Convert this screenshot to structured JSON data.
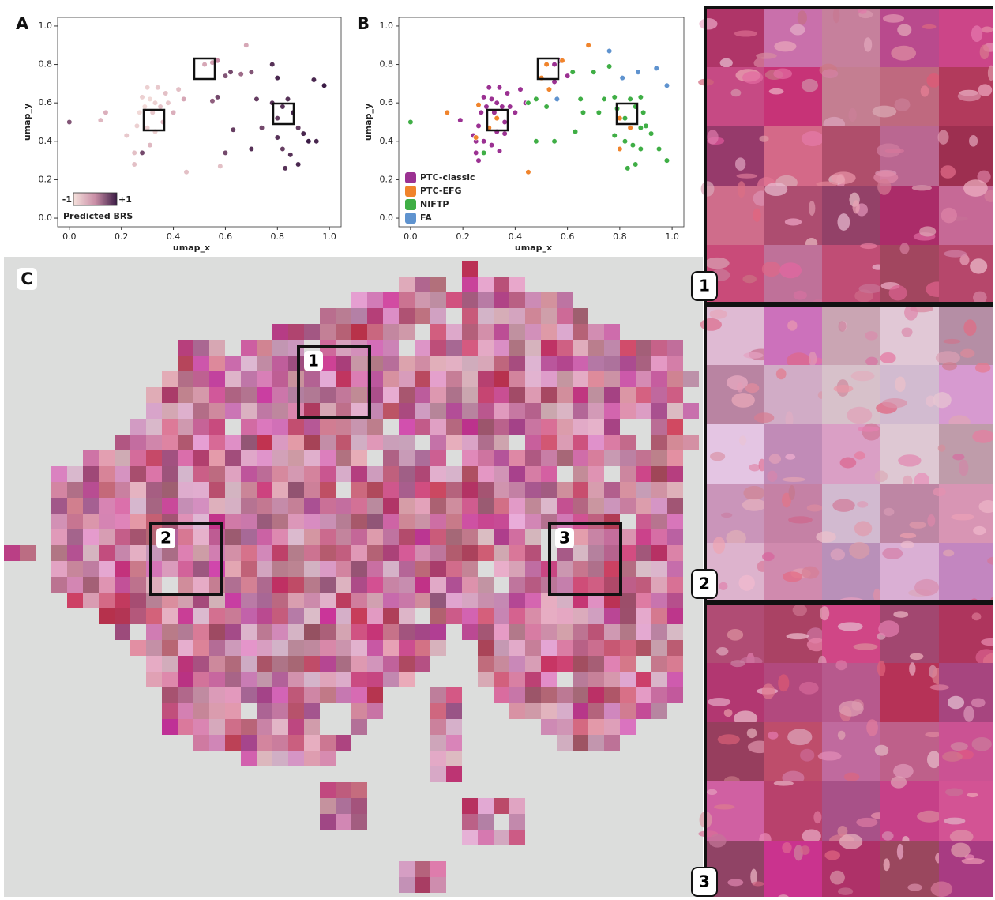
{
  "panels": {
    "a": "A",
    "b": "B",
    "c": "C"
  },
  "chart_data": [
    {
      "type": "scatter",
      "xlabel": "umap_x",
      "ylabel": "umap_y",
      "xlim": [
        -0.045,
        1.045
      ],
      "ylim": [
        -0.045,
        1.045
      ],
      "xticks": [
        {
          "value": 0,
          "label": "0.0"
        },
        {
          "value": 0.2,
          "label": "0.2"
        },
        {
          "value": 0.4,
          "label": "0.4"
        },
        {
          "value": 0.6,
          "label": "0.6"
        },
        {
          "value": 0.8,
          "label": "0.8"
        },
        {
          "value": 1,
          "label": "1.0"
        }
      ],
      "yticks": [
        {
          "value": 0,
          "label": "0.0"
        },
        {
          "value": 0.2,
          "label": "0.2"
        },
        {
          "value": 0.4,
          "label": "0.4"
        },
        {
          "value": 0.6,
          "label": "0.6"
        },
        {
          "value": 0.8,
          "label": "0.8"
        },
        {
          "value": 1,
          "label": "1.0"
        }
      ],
      "x": [
        0.0,
        0.12,
        0.14,
        0.22,
        0.25,
        0.25,
        0.26,
        0.27,
        0.28,
        0.29,
        0.3,
        0.31,
        0.32,
        0.33,
        0.34,
        0.35,
        0.36,
        0.37,
        0.38,
        0.3,
        0.33,
        0.28,
        0.31,
        0.4,
        0.42,
        0.45,
        0.44,
        0.52,
        0.55,
        0.57,
        0.6,
        0.62,
        0.55,
        0.57,
        0.58,
        0.66,
        0.68,
        0.7,
        0.72,
        0.7,
        0.74,
        0.78,
        0.8,
        0.78,
        0.8,
        0.82,
        0.84,
        0.86,
        0.88,
        0.9,
        0.92,
        0.95,
        0.8,
        0.82,
        0.85,
        0.88,
        0.83,
        0.94,
        0.98,
        0.6,
        0.63
      ],
      "y": [
        0.5,
        0.51,
        0.55,
        0.43,
        0.34,
        0.28,
        0.48,
        0.55,
        0.63,
        0.58,
        0.68,
        0.62,
        0.55,
        0.6,
        0.68,
        0.58,
        0.5,
        0.65,
        0.6,
        0.47,
        0.45,
        0.34,
        0.38,
        0.55,
        0.67,
        0.24,
        0.62,
        0.8,
        0.81,
        0.82,
        0.74,
        0.76,
        0.61,
        0.63,
        0.27,
        0.75,
        0.9,
        0.76,
        0.62,
        0.36,
        0.47,
        0.8,
        0.73,
        0.6,
        0.52,
        0.58,
        0.62,
        0.55,
        0.47,
        0.44,
        0.4,
        0.4,
        0.42,
        0.36,
        0.33,
        0.28,
        0.26,
        0.72,
        0.69,
        0.34,
        0.46
      ],
      "color_values": [
        0.5,
        -0.5,
        -0.4,
        -0.7,
        -0.6,
        -0.6,
        -0.8,
        -0.9,
        -0.8,
        -0.9,
        -0.8,
        -0.9,
        -0.7,
        -0.8,
        -0.7,
        -0.6,
        -0.5,
        -0.6,
        -0.7,
        -0.8,
        -0.8,
        0.6,
        -0.5,
        -0.4,
        -0.6,
        -0.6,
        -0.3,
        -0.3,
        -0.2,
        0.0,
        0.5,
        0.6,
        0.4,
        0.6,
        -0.6,
        0.3,
        -0.3,
        0.5,
        0.7,
        0.8,
        0.6,
        0.8,
        0.9,
        0.8,
        0.7,
        0.8,
        0.8,
        0.9,
        0.7,
        0.9,
        1.0,
        0.9,
        0.8,
        0.7,
        0.8,
        0.9,
        0.8,
        0.9,
        1.0,
        0.6,
        0.7
      ],
      "colorbar_label": "Predicted BRS",
      "clim": [
        -1,
        1
      ],
      "cticks": [
        -1,
        {
          "value": 1,
          "label": "+1"
        }
      ],
      "cmap": [
        "#f5e1dc",
        "#c98ea6",
        "#3b1b45"
      ]
    },
    {
      "type": "scatter",
      "xlabel": "umap_x",
      "ylabel": "umap_y",
      "xlim": [
        -0.045,
        1.045
      ],
      "ylim": [
        -0.045,
        1.045
      ],
      "xticks": [
        {
          "value": 0,
          "label": "0.0"
        },
        {
          "value": 0.2,
          "label": "0.2"
        },
        {
          "value": 0.4,
          "label": "0.4"
        },
        {
          "value": 0.6,
          "label": "0.6"
        },
        {
          "value": 0.8,
          "label": "0.8"
        },
        {
          "value": 1,
          "label": "1.0"
        }
      ],
      "yticks": [
        {
          "value": 0,
          "label": "0.0"
        },
        {
          "value": 0.2,
          "label": "0.2"
        },
        {
          "value": 0.4,
          "label": "0.4"
        },
        {
          "value": 0.6,
          "label": "0.6"
        },
        {
          "value": 0.8,
          "label": "0.8"
        },
        {
          "value": 1,
          "label": "1.0"
        }
      ],
      "series": [
        {
          "name": "PTC-classic",
          "color": "#9b3192",
          "x": [
            0.19,
            0.24,
            0.25,
            0.25,
            0.26,
            0.27,
            0.28,
            0.29,
            0.3,
            0.31,
            0.32,
            0.33,
            0.34,
            0.35,
            0.36,
            0.37,
            0.38,
            0.3,
            0.33,
            0.28,
            0.31,
            0.4,
            0.42,
            0.44,
            0.26,
            0.34,
            0.55,
            0.57,
            0.55,
            0.6,
            0.36
          ],
          "y": [
            0.51,
            0.43,
            0.4,
            0.34,
            0.48,
            0.55,
            0.63,
            0.58,
            0.68,
            0.62,
            0.55,
            0.6,
            0.68,
            0.58,
            0.5,
            0.65,
            0.58,
            0.47,
            0.45,
            0.4,
            0.38,
            0.55,
            0.67,
            0.6,
            0.3,
            0.35,
            0.8,
            0.82,
            0.71,
            0.74,
            0.44
          ]
        },
        {
          "name": "PTC-EFG",
          "color": "#f0842c",
          "x": [
            0.14,
            0.26,
            0.25,
            0.33,
            0.45,
            0.52,
            0.5,
            0.58,
            0.68,
            0.53,
            0.8,
            0.8,
            0.84,
            0.3
          ],
          "y": [
            0.55,
            0.59,
            0.42,
            0.52,
            0.24,
            0.8,
            0.73,
            0.82,
            0.9,
            0.67,
            0.52,
            0.36,
            0.47,
            0.47
          ]
        },
        {
          "name": "NIFTP",
          "color": "#3fae45",
          "x": [
            0.0,
            0.28,
            0.45,
            0.48,
            0.52,
            0.62,
            0.65,
            0.66,
            0.7,
            0.72,
            0.74,
            0.76,
            0.78,
            0.79,
            0.82,
            0.84,
            0.86,
            0.88,
            0.89,
            0.9,
            0.92,
            0.78,
            0.82,
            0.85,
            0.88,
            0.95,
            0.98,
            0.83,
            0.86,
            0.55,
            0.48,
            0.63,
            0.88
          ],
          "y": [
            0.5,
            0.34,
            0.6,
            0.62,
            0.58,
            0.76,
            0.62,
            0.55,
            0.76,
            0.55,
            0.62,
            0.79,
            0.63,
            0.57,
            0.52,
            0.62,
            0.58,
            0.63,
            0.55,
            0.48,
            0.44,
            0.43,
            0.4,
            0.38,
            0.36,
            0.36,
            0.3,
            0.26,
            0.28,
            0.4,
            0.4,
            0.45,
            0.47
          ]
        },
        {
          "name": "FA",
          "color": "#5f93cf",
          "x": [
            0.56,
            0.76,
            0.81,
            0.87,
            0.94,
            0.98
          ],
          "y": [
            0.62,
            0.87,
            0.73,
            0.76,
            0.78,
            0.69
          ]
        }
      ]
    }
  ],
  "mosaic": {
    "region_labels": [
      "1",
      "2",
      "3"
    ]
  },
  "tile_panels": {
    "labels": [
      "1",
      "2",
      "3"
    ]
  }
}
